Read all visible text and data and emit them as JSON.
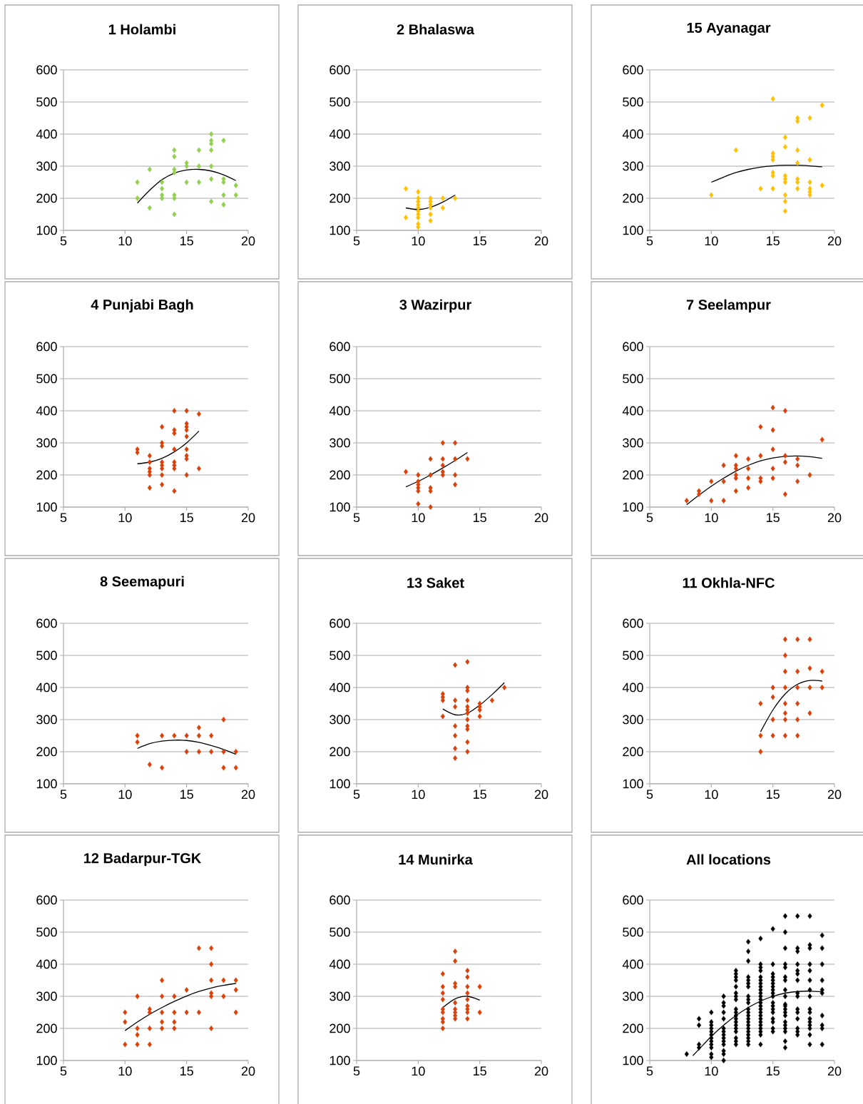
{
  "chart_data": [
    {
      "type": "scatter",
      "title": "1 Holambi",
      "xlim": [
        5,
        20
      ],
      "ylim": [
        100,
        600
      ],
      "xticks": [
        5,
        10,
        15,
        20
      ],
      "yticks": [
        100,
        200,
        300,
        400,
        500,
        600
      ],
      "grid": "y",
      "marker": "diamond",
      "series": [
        {
          "type": "scatter",
          "color": "#92d050",
          "x": [
            11,
            11,
            12,
            12,
            13,
            13,
            13,
            13,
            14,
            14,
            14,
            14,
            14,
            14,
            14,
            15,
            15,
            15,
            16,
            16,
            16,
            17,
            17,
            17,
            17,
            17,
            17,
            17,
            18,
            18,
            18,
            18,
            18,
            19,
            19
          ],
          "values": [
            250,
            200,
            290,
            170,
            250,
            230,
            210,
            200,
            350,
            330,
            290,
            280,
            210,
            200,
            150,
            310,
            300,
            250,
            350,
            300,
            250,
            400,
            380,
            370,
            350,
            300,
            260,
            190,
            380,
            260,
            250,
            210,
            180,
            240,
            210
          ]
        },
        {
          "type": "line",
          "color": "#000000",
          "marker": "none",
          "x": [
            11,
            12,
            13,
            14,
            15,
            16,
            17,
            18,
            19
          ],
          "values": [
            185,
            225,
            258,
            278,
            288,
            290,
            285,
            273,
            255
          ]
        }
      ]
    },
    {
      "type": "scatter",
      "title": "2 Bhalaswa",
      "xlim": [
        5,
        20
      ],
      "ylim": [
        100,
        600
      ],
      "xticks": [
        5,
        10,
        15,
        20
      ],
      "yticks": [
        100,
        200,
        300,
        400,
        500,
        600
      ],
      "grid": "y",
      "marker": "diamond",
      "series": [
        {
          "type": "scatter",
          "color": "#ffc000",
          "x": [
            9,
            9,
            10,
            10,
            10,
            10,
            10,
            10,
            10,
            10,
            10,
            10,
            11,
            11,
            11,
            11,
            11,
            11,
            12,
            12,
            13
          ],
          "values": [
            230,
            140,
            220,
            200,
            190,
            180,
            170,
            160,
            150,
            140,
            120,
            110,
            200,
            190,
            180,
            170,
            150,
            130,
            200,
            170,
            200
          ]
        },
        {
          "type": "line",
          "color": "#000000",
          "marker": "none",
          "x": [
            9,
            10,
            11,
            12,
            13
          ],
          "values": [
            170,
            165,
            172,
            188,
            210
          ]
        }
      ]
    },
    {
      "type": "scatter",
      "title": "15 Ayanagar",
      "xlim": [
        5,
        20
      ],
      "ylim": [
        100,
        600
      ],
      "xticks": [
        5,
        10,
        15,
        20
      ],
      "yticks": [
        100,
        200,
        300,
        400,
        500,
        600
      ],
      "grid": "y",
      "marker": "diamond",
      "series": [
        {
          "type": "scatter",
          "color": "#ffc000",
          "x": [
            10,
            12,
            14,
            15,
            15,
            15,
            15,
            15,
            15,
            15,
            16,
            16,
            16,
            16,
            16,
            16,
            16,
            16,
            17,
            17,
            17,
            17,
            17,
            17,
            17,
            18,
            18,
            18,
            18,
            18,
            18,
            19,
            19
          ],
          "values": [
            210,
            350,
            230,
            510,
            340,
            330,
            320,
            280,
            270,
            230,
            390,
            360,
            270,
            260,
            250,
            210,
            190,
            160,
            450,
            440,
            350,
            310,
            260,
            250,
            230,
            450,
            320,
            250,
            230,
            220,
            210,
            490,
            240
          ]
        },
        {
          "type": "line",
          "color": "#000000",
          "marker": "none",
          "x": [
            10,
            11,
            12,
            13,
            14,
            15,
            16,
            17,
            18,
            19
          ],
          "values": [
            250,
            266,
            280,
            290,
            297,
            301,
            303,
            303,
            301,
            298
          ]
        }
      ]
    },
    {
      "type": "scatter",
      "title": "4 Punjabi Bagh",
      "xlim": [
        5,
        20
      ],
      "ylim": [
        100,
        600
      ],
      "xticks": [
        5,
        10,
        15,
        20
      ],
      "yticks": [
        100,
        200,
        300,
        400,
        500,
        600
      ],
      "grid": "y",
      "marker": "diamond",
      "series": [
        {
          "type": "scatter",
          "color": "#d9410b",
          "x": [
            11,
            11,
            12,
            12,
            12,
            12,
            12,
            12,
            13,
            13,
            13,
            13,
            13,
            13,
            13,
            13,
            14,
            14,
            14,
            14,
            14,
            14,
            14,
            14,
            15,
            15,
            15,
            15,
            15,
            15,
            15,
            15,
            15,
            16,
            16
          ],
          "values": [
            280,
            270,
            260,
            240,
            220,
            210,
            200,
            160,
            350,
            300,
            290,
            240,
            230,
            220,
            200,
            170,
            400,
            340,
            330,
            280,
            240,
            230,
            220,
            150,
            400,
            360,
            350,
            340,
            320,
            280,
            260,
            250,
            200,
            390,
            220
          ]
        },
        {
          "type": "line",
          "color": "#000000",
          "marker": "none",
          "x": [
            11,
            12,
            13,
            14,
            15,
            16
          ],
          "values": [
            235,
            240,
            252,
            272,
            300,
            337
          ]
        }
      ]
    },
    {
      "type": "scatter",
      "title": "3 Wazirpur",
      "xlim": [
        5,
        20
      ],
      "ylim": [
        100,
        600
      ],
      "xticks": [
        5,
        10,
        15,
        20
      ],
      "yticks": [
        100,
        200,
        300,
        400,
        500,
        600
      ],
      "grid": "y",
      "marker": "diamond",
      "series": [
        {
          "type": "scatter",
          "color": "#d9410b",
          "x": [
            9,
            10,
            10,
            10,
            10,
            10,
            10,
            11,
            11,
            11,
            11,
            11,
            12,
            12,
            12,
            12,
            12,
            13,
            13,
            13,
            13,
            14
          ],
          "values": [
            210,
            200,
            180,
            170,
            160,
            150,
            110,
            250,
            200,
            160,
            150,
            100,
            300,
            250,
            230,
            210,
            200,
            300,
            250,
            200,
            170,
            250
          ]
        },
        {
          "type": "line",
          "color": "#000000",
          "marker": "none",
          "x": [
            9,
            10,
            11,
            12,
            13,
            14
          ],
          "values": [
            163,
            180,
            200,
            222,
            245,
            270
          ]
        }
      ]
    },
    {
      "type": "scatter",
      "title": "7 Seelampur",
      "xlim": [
        5,
        20
      ],
      "ylim": [
        100,
        600
      ],
      "xticks": [
        5,
        10,
        15,
        20
      ],
      "yticks": [
        100,
        200,
        300,
        400,
        500,
        600
      ],
      "grid": "y",
      "marker": "diamond",
      "series": [
        {
          "type": "scatter",
          "color": "#d9410b",
          "x": [
            8,
            9,
            9,
            10,
            10,
            11,
            11,
            11,
            12,
            12,
            12,
            12,
            12,
            12,
            13,
            13,
            13,
            13,
            14,
            14,
            14,
            14,
            15,
            15,
            15,
            15,
            15,
            16,
            16,
            16,
            16,
            17,
            17,
            17,
            18,
            19
          ],
          "values": [
            120,
            150,
            140,
            180,
            120,
            230,
            180,
            120,
            260,
            230,
            220,
            200,
            190,
            150,
            250,
            220,
            190,
            160,
            350,
            260,
            190,
            180,
            410,
            340,
            280,
            220,
            190,
            400,
            260,
            240,
            140,
            250,
            230,
            180,
            200,
            310
          ]
        },
        {
          "type": "line",
          "color": "#000000",
          "marker": "none",
          "x": [
            8,
            9,
            10,
            11,
            12,
            13,
            14,
            15,
            16,
            17,
            18,
            19
          ],
          "values": [
            107,
            137,
            165,
            190,
            212,
            230,
            244,
            253,
            258,
            259,
            257,
            252
          ]
        }
      ]
    },
    {
      "type": "scatter",
      "title": "8 Seemapuri",
      "xlim": [
        5,
        20
      ],
      "ylim": [
        100,
        600
      ],
      "xticks": [
        5,
        10,
        15,
        20
      ],
      "yticks": [
        100,
        200,
        300,
        400,
        500,
        600
      ],
      "grid": "y",
      "marker": "diamond",
      "series": [
        {
          "type": "scatter",
          "color": "#d9410b",
          "x": [
            11,
            11,
            12,
            13,
            13,
            14,
            15,
            15,
            16,
            16,
            16,
            17,
            17,
            18,
            18,
            18,
            19,
            19
          ],
          "values": [
            250,
            230,
            160,
            250,
            150,
            250,
            250,
            200,
            275,
            250,
            200,
            250,
            200,
            300,
            200,
            150,
            200,
            150
          ]
        },
        {
          "type": "line",
          "color": "#000000",
          "marker": "none",
          "x": [
            11,
            12,
            13,
            14,
            15,
            16,
            17,
            18,
            19
          ],
          "values": [
            210,
            225,
            233,
            236,
            235,
            229,
            219,
            207,
            192
          ]
        }
      ]
    },
    {
      "type": "scatter",
      "title": "13 Saket",
      "xlim": [
        5,
        20
      ],
      "ylim": [
        100,
        600
      ],
      "xticks": [
        5,
        10,
        15,
        20
      ],
      "yticks": [
        100,
        200,
        300,
        400,
        500,
        600
      ],
      "grid": "y",
      "marker": "diamond",
      "series": [
        {
          "type": "scatter",
          "color": "#d9410b",
          "x": [
            12,
            12,
            12,
            12,
            13,
            13,
            13,
            13,
            13,
            13,
            13,
            14,
            14,
            14,
            14,
            14,
            14,
            14,
            14,
            14,
            14,
            14,
            14,
            15,
            15,
            15,
            15,
            16,
            17
          ],
          "values": [
            380,
            370,
            360,
            310,
            470,
            360,
            340,
            280,
            250,
            210,
            180,
            480,
            400,
            390,
            360,
            340,
            330,
            320,
            300,
            280,
            270,
            230,
            200,
            350,
            340,
            330,
            310,
            360,
            400
          ]
        },
        {
          "type": "line",
          "color": "#000000",
          "marker": "none",
          "x": [
            12,
            13,
            14,
            15,
            16,
            17
          ],
          "values": [
            333,
            315,
            320,
            345,
            378,
            415
          ]
        }
      ]
    },
    {
      "type": "scatter",
      "title": "11 Okhla-NFC",
      "xlim": [
        5,
        20
      ],
      "ylim": [
        100,
        600
      ],
      "xticks": [
        5,
        10,
        15,
        20
      ],
      "yticks": [
        100,
        200,
        300,
        400,
        500,
        600
      ],
      "grid": "y",
      "marker": "diamond",
      "series": [
        {
          "type": "scatter",
          "color": "#d9410b",
          "x": [
            14,
            14,
            14,
            15,
            15,
            15,
            15,
            16,
            16,
            16,
            16,
            16,
            16,
            16,
            16,
            17,
            17,
            17,
            17,
            17,
            17,
            18,
            18,
            18,
            18,
            19,
            19
          ],
          "values": [
            350,
            250,
            200,
            400,
            370,
            300,
            250,
            550,
            500,
            450,
            400,
            350,
            320,
            300,
            250,
            550,
            450,
            400,
            350,
            300,
            250,
            550,
            460,
            400,
            320,
            450,
            400
          ]
        },
        {
          "type": "line",
          "color": "#000000",
          "marker": "none",
          "x": [
            14,
            15,
            16,
            17,
            18,
            19
          ],
          "values": [
            262,
            330,
            380,
            410,
            422,
            420
          ]
        }
      ]
    },
    {
      "type": "scatter",
      "title": "12 Badarpur-TGK",
      "xlim": [
        5,
        20
      ],
      "ylim": [
        100,
        600
      ],
      "xticks": [
        5,
        10,
        15,
        20
      ],
      "yticks": [
        100,
        200,
        300,
        400,
        500,
        600
      ],
      "grid": "y",
      "marker": "diamond",
      "series": [
        {
          "type": "scatter",
          "color": "#d9410b",
          "x": [
            10,
            10,
            10,
            11,
            11,
            11,
            11,
            12,
            12,
            12,
            12,
            13,
            13,
            13,
            13,
            13,
            14,
            14,
            14,
            14,
            15,
            15,
            16,
            16,
            17,
            17,
            17,
            17,
            17,
            17,
            18,
            18,
            19,
            19,
            19
          ],
          "values": [
            250,
            220,
            150,
            300,
            200,
            180,
            150,
            260,
            250,
            200,
            150,
            350,
            300,
            250,
            220,
            200,
            300,
            250,
            220,
            200,
            320,
            250,
            450,
            250,
            450,
            400,
            350,
            310,
            300,
            200,
            350,
            300,
            350,
            320,
            250
          ]
        },
        {
          "type": "line",
          "color": "#000000",
          "marker": "none",
          "x": [
            10,
            11,
            12,
            13,
            14,
            15,
            16,
            17,
            18,
            19
          ],
          "values": [
            193,
            220,
            244,
            265,
            284,
            301,
            315,
            326,
            334,
            340
          ]
        }
      ]
    },
    {
      "type": "scatter",
      "title": "14 Munirka",
      "xlim": [
        5,
        20
      ],
      "ylim": [
        100,
        600
      ],
      "xticks": [
        5,
        10,
        15,
        20
      ],
      "yticks": [
        100,
        200,
        300,
        400,
        500,
        600
      ],
      "grid": "y",
      "marker": "diamond",
      "series": [
        {
          "type": "scatter",
          "color": "#d9410b",
          "x": [
            12,
            12,
            12,
            12,
            12,
            12,
            12,
            12,
            12,
            13,
            13,
            13,
            13,
            13,
            13,
            13,
            13,
            13,
            14,
            14,
            14,
            14,
            14,
            14,
            14,
            14,
            14,
            15,
            15
          ],
          "values": [
            370,
            330,
            310,
            290,
            260,
            250,
            230,
            220,
            200,
            440,
            410,
            340,
            330,
            280,
            260,
            250,
            240,
            230,
            380,
            360,
            330,
            310,
            290,
            270,
            260,
            250,
            230,
            330,
            250
          ]
        },
        {
          "type": "line",
          "color": "#000000",
          "marker": "none",
          "x": [
            12,
            13,
            14,
            15
          ],
          "values": [
            265,
            292,
            300,
            288
          ]
        }
      ]
    },
    {
      "type": "scatter",
      "title": "All locations",
      "xlim": [
        5,
        20
      ],
      "ylim": [
        100,
        600
      ],
      "xticks": [
        5,
        10,
        15,
        20
      ],
      "yticks": [
        100,
        200,
        300,
        400,
        500,
        600
      ],
      "grid": "y",
      "marker": "diamond",
      "series": [
        {
          "type": "scatter",
          "color": "#000000",
          "x": [
            8,
            9,
            9,
            9,
            9,
            10,
            10,
            10,
            10,
            10,
            10,
            10,
            10,
            10,
            10,
            10,
            10,
            11,
            11,
            11,
            11,
            11,
            11,
            11,
            11,
            11,
            11,
            11,
            11,
            11,
            11,
            12,
            12,
            12,
            12,
            12,
            12,
            12,
            12,
            12,
            12,
            12,
            12,
            12,
            12,
            12,
            12,
            12,
            12,
            12,
            13,
            13,
            13,
            13,
            13,
            13,
            13,
            13,
            13,
            13,
            13,
            13,
            13,
            13,
            13,
            13,
            13,
            13,
            13,
            13,
            13,
            13,
            14,
            14,
            14,
            14,
            14,
            14,
            14,
            14,
            14,
            14,
            14,
            14,
            14,
            14,
            14,
            14,
            14,
            14,
            14,
            14,
            14,
            14,
            14,
            14,
            15,
            15,
            15,
            15,
            15,
            15,
            15,
            15,
            15,
            15,
            15,
            15,
            15,
            15,
            15,
            15,
            15,
            15,
            16,
            16,
            16,
            16,
            16,
            16,
            16,
            16,
            16,
            16,
            16,
            16,
            16,
            16,
            16,
            16,
            16,
            16,
            16,
            16,
            17,
            17,
            17,
            17,
            17,
            17,
            17,
            17,
            17,
            17,
            17,
            17,
            17,
            17,
            17,
            18,
            18,
            18,
            18,
            18,
            18,
            18,
            18,
            18,
            18,
            18,
            18,
            18,
            18,
            18,
            18,
            19,
            19,
            19,
            19,
            19,
            19,
            19,
            19,
            19,
            19
          ],
          "values": [
            120,
            230,
            210,
            150,
            140,
            250,
            220,
            210,
            200,
            190,
            180,
            170,
            160,
            150,
            140,
            120,
            110,
            300,
            280,
            270,
            250,
            230,
            200,
            190,
            180,
            170,
            160,
            150,
            130,
            120,
            100,
            380,
            370,
            360,
            350,
            330,
            310,
            300,
            290,
            260,
            250,
            240,
            230,
            220,
            210,
            200,
            190,
            170,
            160,
            150,
            470,
            440,
            410,
            360,
            350,
            340,
            330,
            300,
            290,
            280,
            260,
            250,
            240,
            230,
            220,
            210,
            200,
            190,
            180,
            170,
            160,
            150,
            480,
            400,
            390,
            380,
            360,
            350,
            340,
            330,
            320,
            310,
            300,
            290,
            280,
            270,
            260,
            250,
            240,
            230,
            220,
            210,
            200,
            190,
            180,
            150,
            510,
            400,
            370,
            360,
            350,
            340,
            330,
            320,
            310,
            300,
            280,
            270,
            260,
            250,
            230,
            220,
            200,
            190,
            550,
            500,
            450,
            400,
            390,
            360,
            350,
            320,
            300,
            275,
            270,
            260,
            250,
            240,
            220,
            210,
            200,
            190,
            160,
            140,
            550,
            450,
            440,
            400,
            380,
            370,
            350,
            310,
            300,
            260,
            250,
            230,
            200,
            190,
            180,
            550,
            460,
            450,
            400,
            380,
            350,
            320,
            300,
            260,
            250,
            230,
            220,
            210,
            200,
            180,
            150,
            490,
            450,
            400,
            350,
            320,
            310,
            240,
            210,
            200,
            150
          ]
        },
        {
          "type": "line",
          "color": "#000000",
          "marker": "none",
          "x": [
            8.5,
            9,
            10,
            11,
            12,
            13,
            14,
            15,
            16,
            17,
            18,
            19
          ],
          "values": [
            115,
            135,
            175,
            210,
            240,
            265,
            285,
            300,
            310,
            315,
            316,
            314
          ]
        }
      ]
    }
  ]
}
